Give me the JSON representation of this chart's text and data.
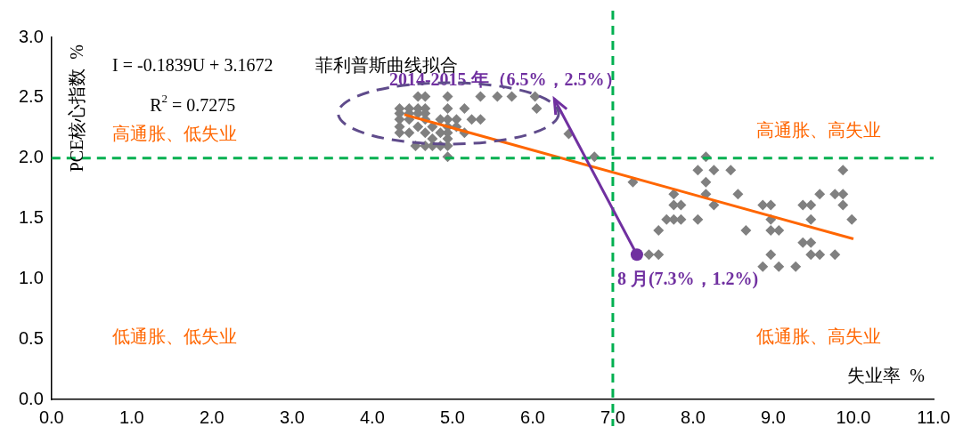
{
  "chart_data": {
    "type": "scatter",
    "xlabel": "失业率  %",
    "ylabel": "PCE核心指数  %",
    "xlim": [
      0,
      11
    ],
    "xticks": [
      {
        "value": 0,
        "label": "0.0"
      },
      {
        "value": 1,
        "label": "1.0"
      },
      {
        "value": 2,
        "label": "2.0"
      },
      {
        "value": 3,
        "label": "3.0"
      },
      {
        "value": 4,
        "label": "4.0"
      },
      {
        "value": 5,
        "label": "5.0"
      },
      {
        "value": 6,
        "label": "6.0"
      },
      {
        "value": 7,
        "label": "7.0"
      },
      {
        "value": 8,
        "label": "8.0"
      },
      {
        "value": 9,
        "label": "9.0"
      },
      {
        "value": 10,
        "label": "10.0"
      },
      {
        "value": 11,
        "label": "11.0"
      }
    ],
    "ylim": [
      0,
      3
    ],
    "yticks": [
      {
        "value": 0,
        "label": "0.0"
      },
      {
        "value": 0.5,
        "label": "0.5"
      },
      {
        "value": 1,
        "label": "1.0"
      },
      {
        "value": 1.5,
        "label": "1.5"
      },
      {
        "value": 2,
        "label": "2.0"
      },
      {
        "value": 2.5,
        "label": "2.5"
      },
      {
        "value": 3,
        "label": "3.0"
      }
    ],
    "grid": false,
    "legend": false,
    "marker": "diamond",
    "series": [
      {
        "type": "scatter",
        "color": "#808080",
        "x": [
          4.57,
          4.66,
          4.94,
          5.35,
          5.56,
          5.74,
          6.03,
          4.34,
          4.46,
          4.57,
          4.66,
          4.94,
          5.15,
          6.05,
          4.34,
          4.46,
          4.57,
          4.66,
          4.34,
          4.46,
          4.66,
          4.85,
          4.94,
          5.05,
          5.24,
          5.35,
          4.34,
          4.57,
          4.75,
          4.94,
          5.05,
          4.34,
          4.46,
          4.66,
          4.85,
          4.94,
          5.15,
          4.75,
          4.94,
          4.54,
          4.66,
          4.75,
          4.85,
          4.94,
          4.94,
          6.45,
          6.77,
          8.16,
          8.06,
          8.26,
          8.47,
          9.87,
          8.16,
          7.25,
          7.76,
          8.16,
          8.56,
          9.58,
          9.77,
          9.87,
          7.76,
          7.85,
          8.26,
          8.87,
          8.97,
          9.37,
          9.47,
          9.87,
          7.67,
          7.76,
          7.85,
          8.06,
          8.97,
          9.47,
          9.98,
          7.57,
          8.66,
          8.97,
          9.07,
          9.37,
          9.47,
          7.45,
          7.57,
          8.97,
          9.47,
          9.58,
          9.77,
          8.87,
          9.07,
          9.28
        ],
        "values": [
          2.51,
          2.51,
          2.51,
          2.51,
          2.51,
          2.51,
          2.51,
          2.41,
          2.41,
          2.41,
          2.41,
          2.41,
          2.41,
          2.41,
          2.37,
          2.37,
          2.37,
          2.37,
          2.32,
          2.32,
          2.32,
          2.32,
          2.32,
          2.32,
          2.32,
          2.32,
          2.26,
          2.26,
          2.26,
          2.26,
          2.26,
          2.21,
          2.21,
          2.21,
          2.21,
          2.21,
          2.21,
          2.16,
          2.16,
          2.1,
          2.1,
          2.1,
          2.1,
          2.1,
          2.01,
          2.2,
          2.01,
          2.01,
          1.9,
          1.9,
          1.9,
          1.9,
          1.8,
          1.8,
          1.7,
          1.7,
          1.7,
          1.7,
          1.7,
          1.7,
          1.61,
          1.61,
          1.61,
          1.61,
          1.61,
          1.61,
          1.61,
          1.61,
          1.49,
          1.49,
          1.49,
          1.49,
          1.49,
          1.49,
          1.49,
          1.4,
          1.4,
          1.4,
          1.4,
          1.3,
          1.3,
          1.2,
          1.2,
          1.2,
          1.2,
          1.2,
          1.2,
          1.1,
          1.1,
          1.1
        ]
      },
      {
        "type": "line",
        "color": "#ff6600",
        "x": [
          4.4,
          10
        ],
        "values": [
          2.36,
          1.33
        ],
        "marker": "none",
        "line_style": "solid"
      }
    ],
    "ref_lines": [
      {
        "axis": "x",
        "value": 7,
        "color": "#00b050",
        "line_style": "dashed"
      },
      {
        "axis": "y",
        "value": 2,
        "color": "#00b050",
        "line_style": "dashed"
      }
    ],
    "annotations": [
      "I = -0.1839U + 3.1672",
      "R$^{2}$ = 0.7275",
      "菲利普斯曲线拟合",
      "高通胀、低失业",
      "高通胀、高失业",
      "低通胀、低失业",
      "低通胀、高失业",
      "2014-2015 年（6.5%，2.5%）",
      {
        "text": "8 月(7.3%，1.2%)",
        "x": 7.3,
        "y": 1.2
      }
    ]
  }
}
